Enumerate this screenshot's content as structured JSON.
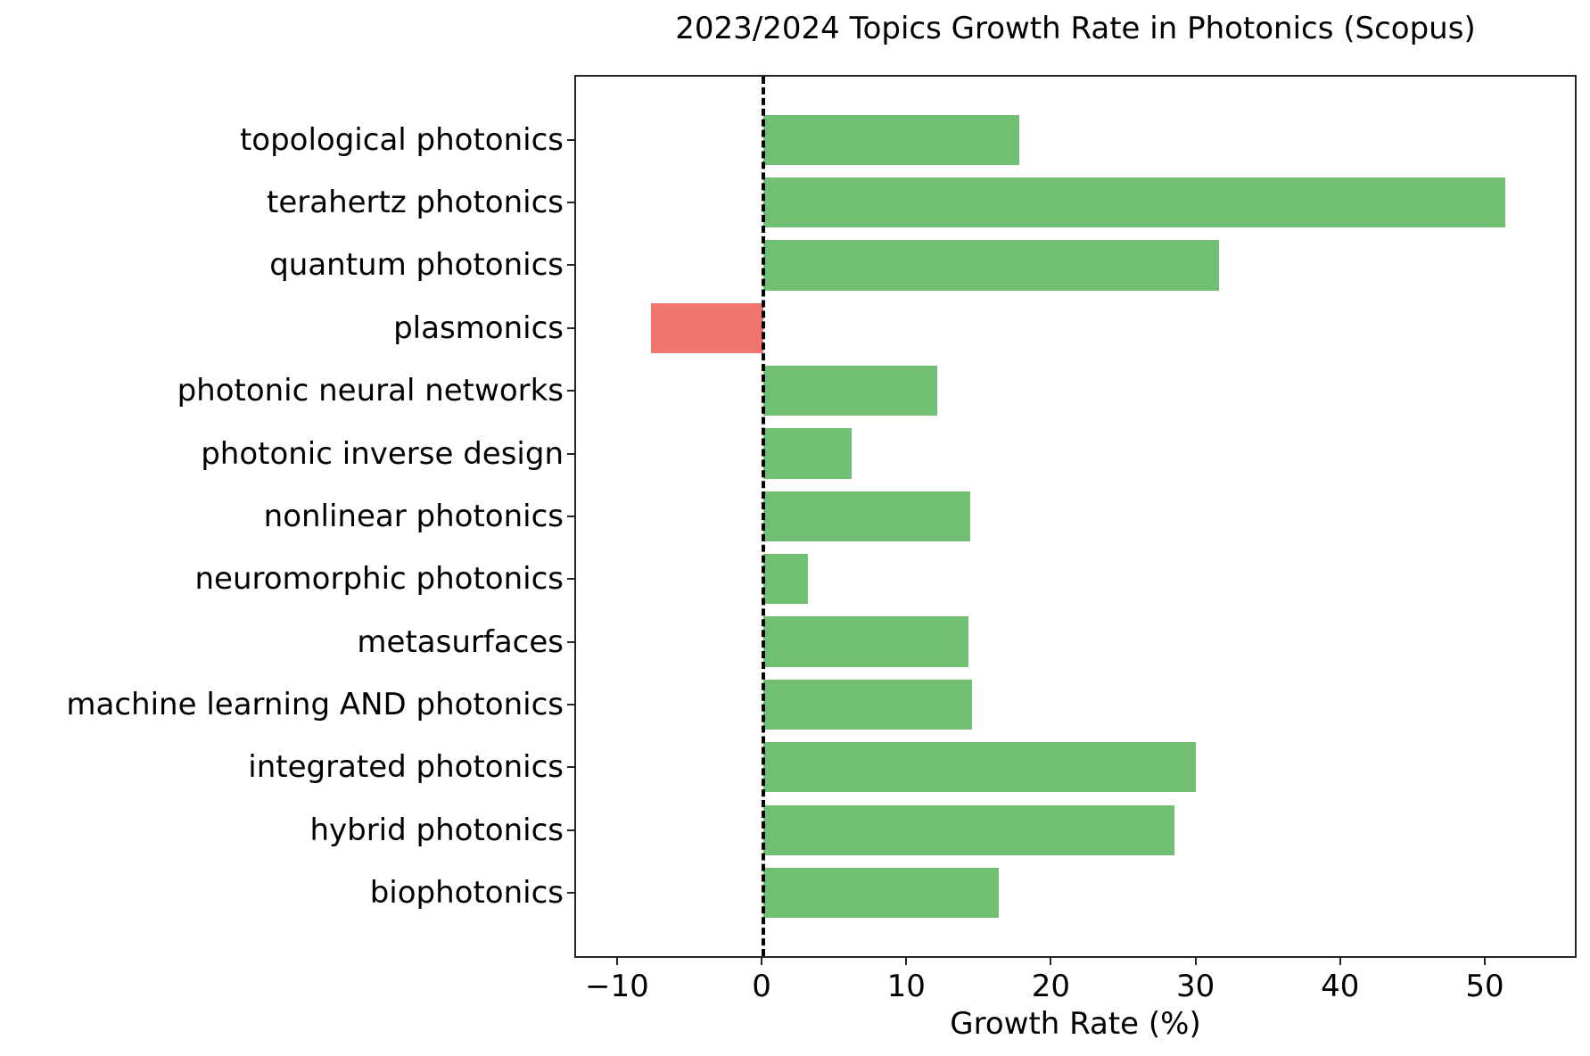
{
  "chart_data": {
    "type": "bar",
    "orientation": "horizontal",
    "title": "2023/2024 Topics Growth Rate in Photonics (Scopus)",
    "xlabel": "Growth Rate (%)",
    "ylabel": "",
    "xlim": [
      -12.95,
      56.35
    ],
    "xticks": [
      -10,
      0,
      10,
      20,
      30,
      40,
      50
    ],
    "xtick_labels": [
      "−10",
      "0",
      "10",
      "20",
      "30",
      "40",
      "50"
    ],
    "grid": false,
    "legend": null,
    "reference_line": {
      "x": 0,
      "style": "dashed",
      "color": "#000000"
    },
    "positive_color": "#71bf73",
    "negative_color": "#f07470",
    "categories": [
      "topological photonics",
      "terahertz photonics",
      "quantum photonics",
      "plasmonics",
      "photonic neural networks",
      "photonic inverse design",
      "nonlinear photonics",
      "neuromorphic photonics",
      "metasurfaces",
      "machine learning AND photonics",
      "integrated photonics",
      "hybrid photonics",
      "biophotonics"
    ],
    "values": [
      17.7,
      51.3,
      31.5,
      -7.8,
      12.0,
      6.1,
      14.3,
      3.1,
      14.2,
      14.4,
      29.9,
      28.4,
      16.3
    ]
  },
  "header": {
    "title": "2023/2024 Topics Growth Rate in Photonics (Scopus)"
  },
  "axes": {
    "x_title": "Growth Rate (%)"
  }
}
